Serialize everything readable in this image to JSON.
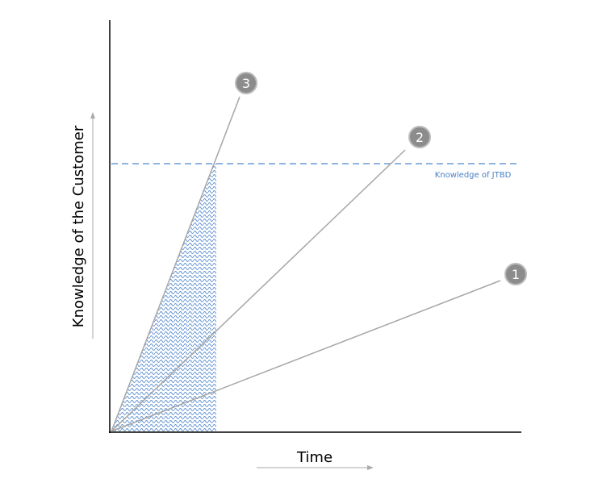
{
  "axes": {
    "y_label": "Knowledge of the Customer",
    "x_label": "Time"
  },
  "threshold": {
    "label": "Knowledge of JTBD"
  },
  "lines": [
    {
      "label": "1"
    },
    {
      "label": "2"
    },
    {
      "label": "3"
    }
  ]
}
